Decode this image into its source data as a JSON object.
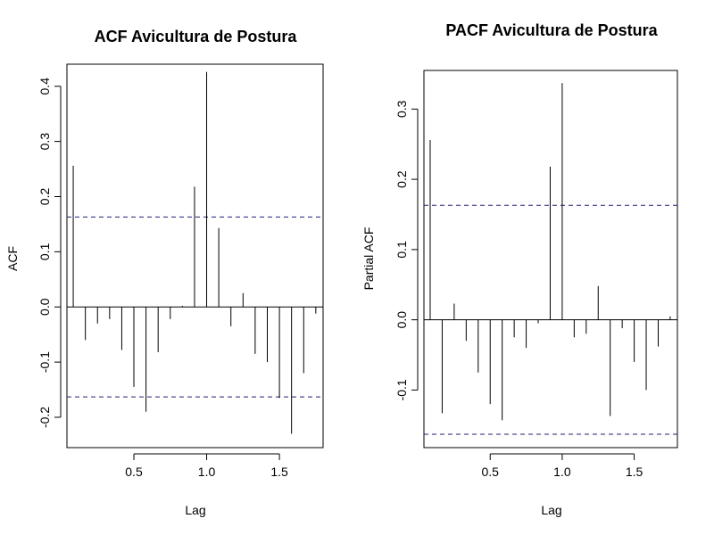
{
  "chart_data": [
    {
      "type": "bar",
      "title": "ACF Avicultura de Postura",
      "xlabel": "Lag",
      "ylabel": "ACF",
      "xlim": [
        0.04,
        1.8
      ],
      "ylim": [
        -0.255,
        0.44
      ],
      "x_ticks": [
        0.5,
        1.0,
        1.5
      ],
      "y_ticks": [
        -0.2,
        -0.1,
        0.0,
        0.1,
        0.2,
        0.3,
        0.4
      ],
      "ci": [
        0.163,
        -0.163
      ],
      "lags": [
        0.0833,
        0.1667,
        0.25,
        0.3333,
        0.4167,
        0.5,
        0.5833,
        0.6667,
        0.75,
        0.8333,
        0.9167,
        1.0,
        1.0833,
        1.1667,
        1.25,
        1.3333,
        1.4167,
        1.5,
        1.5833,
        1.6667,
        1.75
      ],
      "values": [
        0.256,
        -0.06,
        -0.03,
        -0.022,
        -0.078,
        -0.145,
        -0.19,
        -0.082,
        -0.022,
        0.002,
        0.218,
        0.426,
        0.143,
        -0.035,
        0.025,
        -0.085,
        -0.1,
        -0.165,
        -0.23,
        -0.12,
        -0.012
      ]
    },
    {
      "type": "bar",
      "title": "PACF Avicultura de Postura",
      "xlabel": "Lag",
      "ylabel": "Partial ACF",
      "xlim": [
        0.04,
        1.8
      ],
      "ylim": [
        -0.182,
        0.355
      ],
      "x_ticks": [
        0.5,
        1.0,
        1.5
      ],
      "y_ticks": [
        -0.1,
        0.0,
        0.1,
        0.2,
        0.3
      ],
      "ci": [
        0.163,
        -0.163
      ],
      "lags": [
        0.0833,
        0.1667,
        0.25,
        0.3333,
        0.4167,
        0.5,
        0.5833,
        0.6667,
        0.75,
        0.8333,
        0.9167,
        1.0,
        1.0833,
        1.1667,
        1.25,
        1.3333,
        1.4167,
        1.5,
        1.5833,
        1.6667,
        1.75
      ],
      "values": [
        0.256,
        -0.133,
        0.023,
        -0.03,
        -0.075,
        -0.12,
        -0.143,
        -0.025,
        -0.04,
        -0.005,
        0.218,
        0.337,
        -0.025,
        -0.02,
        0.048,
        -0.137,
        -0.012,
        -0.06,
        -0.1,
        -0.038,
        0.005
      ]
    }
  ]
}
